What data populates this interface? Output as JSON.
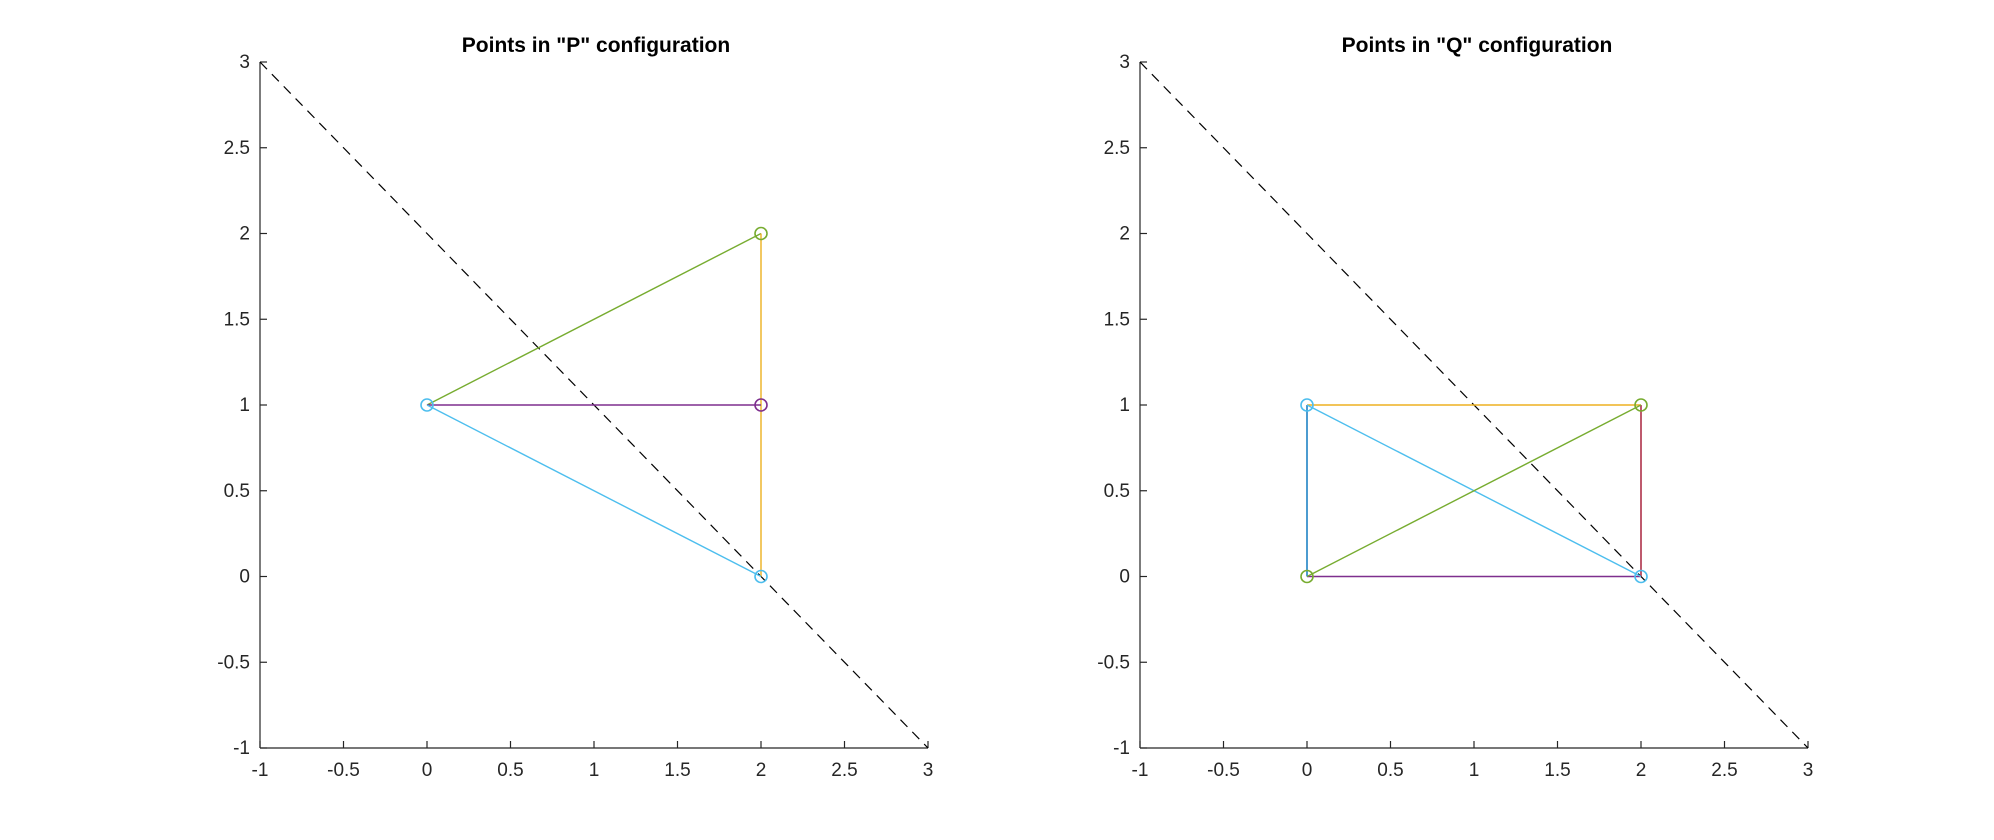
{
  "chart_data": [
    {
      "type": "line",
      "title": "Points in \"P\" configuration",
      "xlabel": "",
      "ylabel": "",
      "xlim": [
        -1,
        3
      ],
      "ylim": [
        -1,
        3
      ],
      "xticks": [
        "-1",
        "-0.5",
        "0",
        "0.5",
        "1",
        "1.5",
        "2",
        "2.5",
        "3"
      ],
      "yticks": [
        "-1",
        "-0.5",
        "0",
        "0.5",
        "1",
        "1.5",
        "2",
        "2.5",
        "3"
      ],
      "grid": false,
      "reference_line": {
        "x": [
          -1,
          3
        ],
        "y": [
          3,
          -1
        ],
        "style": "dashed",
        "color": "#000000"
      },
      "segments": [
        {
          "x": [
            0,
            2
          ],
          "y": [
            1,
            2
          ],
          "color": "#77ac30"
        },
        {
          "x": [
            2,
            2
          ],
          "y": [
            2,
            0
          ],
          "color": "#edb120"
        },
        {
          "x": [
            0,
            2
          ],
          "y": [
            1,
            1
          ],
          "color": "#7e2f8e"
        },
        {
          "x": [
            0,
            2
          ],
          "y": [
            1,
            0
          ],
          "color": "#4dbeee"
        }
      ],
      "points": [
        {
          "x": 0,
          "y": 1,
          "color": "#4dbeee"
        },
        {
          "x": 2,
          "y": 2,
          "color": "#77ac30"
        },
        {
          "x": 2,
          "y": 1,
          "color": "#7e2f8e"
        },
        {
          "x": 2,
          "y": 0,
          "color": "#4dbeee"
        }
      ]
    },
    {
      "type": "line",
      "title": "Points in \"Q\" configuration",
      "xlabel": "",
      "ylabel": "",
      "xlim": [
        -1,
        3
      ],
      "ylim": [
        -1,
        3
      ],
      "xticks": [
        "-1",
        "-0.5",
        "0",
        "0.5",
        "1",
        "1.5",
        "2",
        "2.5",
        "3"
      ],
      "yticks": [
        "-1",
        "-0.5",
        "0",
        "0.5",
        "1",
        "1.5",
        "2",
        "2.5",
        "3"
      ],
      "grid": false,
      "reference_line": {
        "x": [
          -1,
          3
        ],
        "y": [
          3,
          -1
        ],
        "style": "dashed",
        "color": "#000000"
      },
      "segments": [
        {
          "x": [
            0,
            2
          ],
          "y": [
            1,
            1
          ],
          "color": "#edb120"
        },
        {
          "x": [
            0,
            0
          ],
          "y": [
            1,
            0
          ],
          "color": "#0072bd"
        },
        {
          "x": [
            0,
            2
          ],
          "y": [
            0,
            0
          ],
          "color": "#7e2f8e"
        },
        {
          "x": [
            2,
            2
          ],
          "y": [
            1,
            0
          ],
          "color": "#a2142f"
        },
        {
          "x": [
            0,
            2
          ],
          "y": [
            1,
            0
          ],
          "color": "#4dbeee"
        },
        {
          "x": [
            0,
            2
          ],
          "y": [
            0,
            1
          ],
          "color": "#77ac30"
        }
      ],
      "points": [
        {
          "x": 0,
          "y": 1,
          "color": "#4dbeee"
        },
        {
          "x": 2,
          "y": 1,
          "color": "#77ac30"
        },
        {
          "x": 0,
          "y": 0,
          "color": "#77ac30"
        },
        {
          "x": 2,
          "y": 0,
          "color": "#4dbeee"
        }
      ]
    }
  ]
}
